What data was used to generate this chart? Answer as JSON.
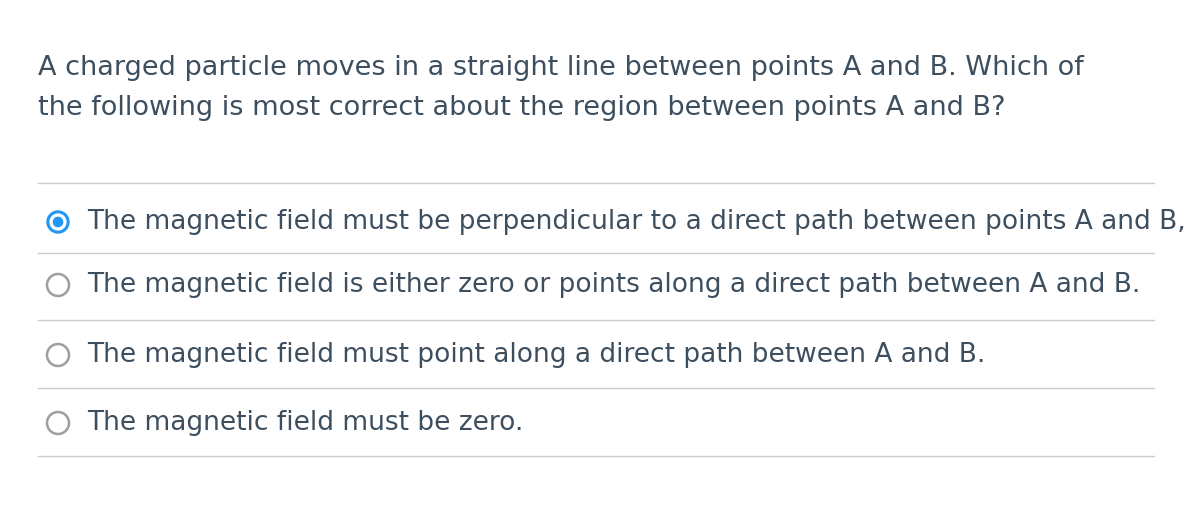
{
  "background_color": "#ffffff",
  "question_line1": "A charged particle moves in a straight line between points A and B. Which of",
  "question_line2": "the following is most correct about the region between points A and B?",
  "question_fontsize": 19.5,
  "question_color": "#3d4f5f",
  "options": [
    {
      "text": "The magnetic field must be perpendicular to a direct path between points A and B,",
      "selected": true
    },
    {
      "text": "The magnetic field is either zero or points along a direct path between A and B.",
      "selected": false
    },
    {
      "text": "The magnetic field must point along a direct path between A and B.",
      "selected": false
    },
    {
      "text": "The magnetic field must be zero.",
      "selected": false
    }
  ],
  "option_fontsize": 19,
  "option_color": "#3d4f5f",
  "radio_selected_color": "#2196f3",
  "radio_unselected_color": "#9e9e9e",
  "divider_color": "#cccccc",
  "figwidth": 11.92,
  "figheight": 5.28,
  "dpi": 100
}
